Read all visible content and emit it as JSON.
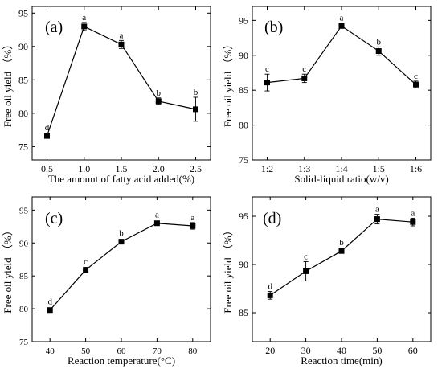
{
  "chart_data": [
    {
      "type": "line",
      "panel_label": "(a)",
      "xlabel": "The amount of fatty acid added(%)",
      "ylabel": "Free oil yield （%）",
      "x": [
        0.5,
        1.0,
        1.5,
        2.0,
        2.5
      ],
      "x_ticklabels": [
        "0.5",
        "1.0",
        "1.5",
        "2.0",
        "2.5"
      ],
      "xlim": [
        0.3,
        2.7
      ],
      "y_ticks": [
        75,
        80,
        85,
        90,
        95
      ],
      "ylim": [
        73,
        96
      ],
      "series": [
        {
          "values": [
            76.6,
            93.0,
            90.3,
            81.8,
            80.6
          ],
          "errors": [
            0.3,
            0.6,
            0.6,
            0.5,
            1.8
          ],
          "letters": [
            "d",
            "a",
            "a",
            "b",
            "b"
          ]
        }
      ]
    },
    {
      "type": "line",
      "panel_label": "(b)",
      "xlabel": "Solid-liquid ratio(w/v)",
      "ylabel": "Free oil yield （%）",
      "x": [
        1,
        2,
        3,
        4,
        5
      ],
      "x_ticklabels": [
        "1:2",
        "1:3",
        "1:4",
        "1:5",
        "1:6"
      ],
      "xlim": [
        0.6,
        5.4
      ],
      "y_ticks": [
        75,
        80,
        85,
        90,
        95
      ],
      "ylim": [
        75,
        97
      ],
      "series": [
        {
          "values": [
            86.1,
            86.7,
            94.2,
            90.6,
            85.8
          ],
          "errors": [
            1.2,
            0.6,
            0.3,
            0.6,
            0.5
          ],
          "letters": [
            "c",
            "c",
            "a",
            "b",
            "c"
          ]
        }
      ]
    },
    {
      "type": "line",
      "panel_label": "(c)",
      "xlabel": "Reaction temperature(°C)",
      "ylabel": "Free oil yield （%）",
      "x": [
        40,
        50,
        60,
        70,
        80
      ],
      "x_ticklabels": [
        "40",
        "50",
        "60",
        "70",
        "80"
      ],
      "xlim": [
        35,
        85
      ],
      "y_ticks": [
        75,
        80,
        85,
        90,
        95
      ],
      "ylim": [
        75,
        97
      ],
      "series": [
        {
          "values": [
            79.8,
            85.9,
            90.2,
            93.0,
            92.6
          ],
          "errors": [
            0.2,
            0.4,
            0.2,
            0.2,
            0.5
          ],
          "letters": [
            "d",
            "c",
            "b",
            "a",
            "a"
          ]
        }
      ]
    },
    {
      "type": "line",
      "panel_label": "(d)",
      "xlabel": "Reaction time(min)",
      "ylabel": "Free oil yield （%）",
      "x": [
        20,
        30,
        40,
        50,
        60
      ],
      "x_ticklabels": [
        "20",
        "30",
        "40",
        "50",
        "60"
      ],
      "xlim": [
        15,
        65
      ],
      "y_ticks": [
        85,
        90,
        95
      ],
      "ylim": [
        82,
        97
      ],
      "series": [
        {
          "values": [
            86.8,
            89.3,
            91.4,
            94.7,
            94.4
          ],
          "errors": [
            0.4,
            1.0,
            0.2,
            0.5,
            0.4
          ],
          "letters": [
            "d",
            "c",
            "b",
            "a",
            "a"
          ]
        }
      ]
    }
  ]
}
